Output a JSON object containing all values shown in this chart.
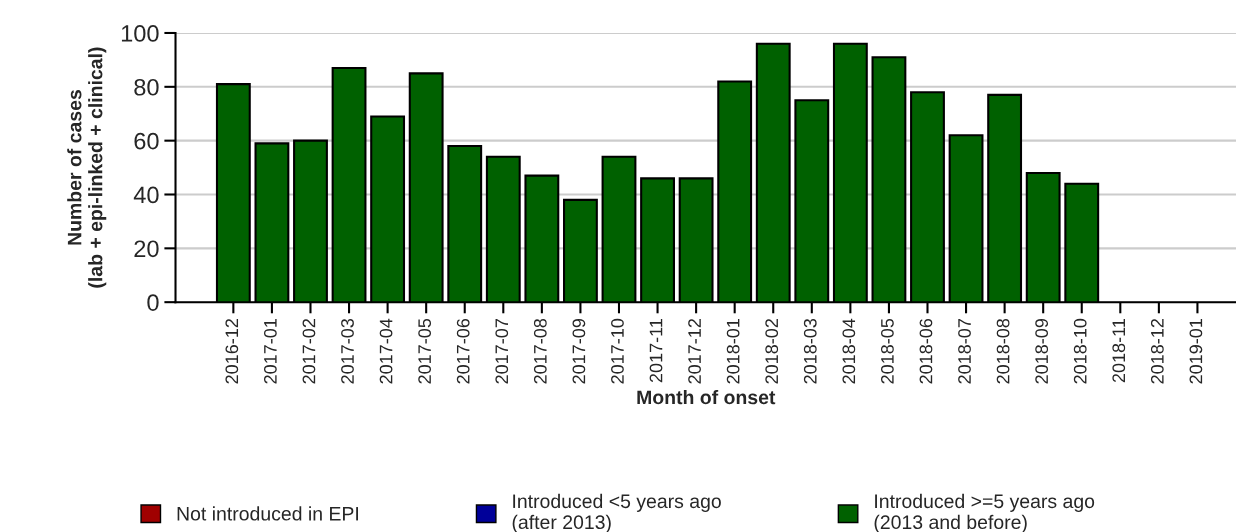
{
  "chart_data": {
    "type": "bar",
    "xlabel": "Month of onset",
    "ylabel": "Number of cases\n(lab + epi-linked + clinical)",
    "categories": [
      "2016-12",
      "2017-01",
      "2017-02",
      "2017-03",
      "2017-04",
      "2017-05",
      "2017-06",
      "2017-07",
      "2017-08",
      "2017-09",
      "2017-10",
      "2017-11",
      "2017-12",
      "2018-01",
      "2018-02",
      "2018-03",
      "2018-04",
      "2018-05",
      "2018-06",
      "2018-07",
      "2018-08",
      "2018-09",
      "2018-10",
      "2018-11",
      "2018-12",
      "2019-01"
    ],
    "series": [
      {
        "name": "Not introduced in EPI",
        "color": "#a00000",
        "values": [
          null,
          null,
          null,
          null,
          null,
          null,
          null,
          null,
          null,
          null,
          null,
          null,
          null,
          null,
          null,
          null,
          null,
          null,
          null,
          null,
          null,
          null,
          null,
          null,
          null,
          null
        ]
      },
      {
        "name": "Introduced <5 years ago\n(after 2013)",
        "color": "#000099",
        "values": [
          null,
          null,
          null,
          null,
          null,
          null,
          null,
          null,
          null,
          null,
          null,
          null,
          null,
          null,
          null,
          null,
          null,
          null,
          null,
          null,
          null,
          null,
          null,
          null,
          null,
          null
        ]
      },
      {
        "name": "Introduced >=5 years ago\n(2013 and before)",
        "color": "#006100",
        "values": [
          81,
          59,
          60,
          87,
          69,
          85,
          58,
          54,
          47,
          38,
          54,
          46,
          46,
          82,
          96,
          75,
          96,
          91,
          78,
          62,
          77,
          48,
          44,
          null,
          null,
          null
        ]
      }
    ],
    "ylim": [
      0,
      100
    ],
    "yticks": [
      0,
      20,
      40,
      60,
      80,
      100
    ],
    "grid": "y",
    "legend": "bottom"
  }
}
